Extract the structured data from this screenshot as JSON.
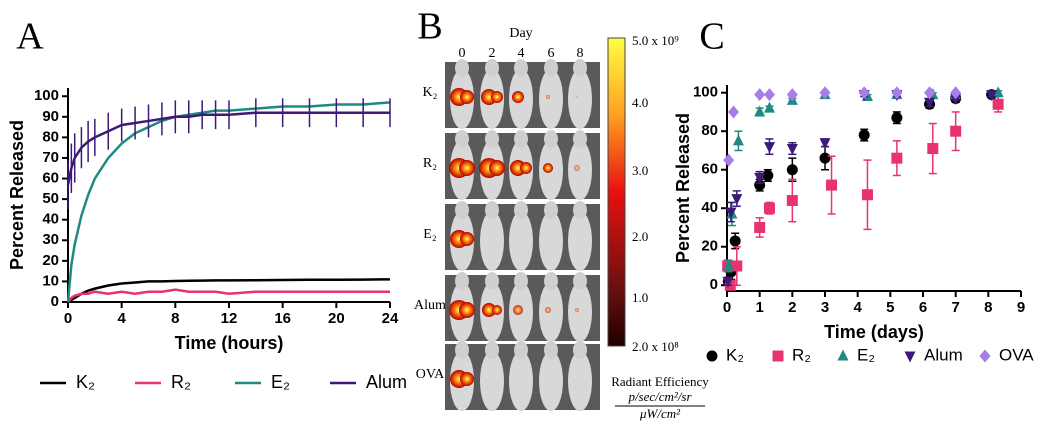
{
  "chart_data": [
    {
      "type": "line",
      "panel_label": "A",
      "y_label": "Percent Released",
      "x_label": "Time (hours)",
      "x": [
        0,
        0.25,
        0.5,
        1,
        1.5,
        2,
        3,
        4,
        5,
        6,
        7,
        8,
        9,
        10,
        11,
        12,
        14,
        16,
        18,
        20,
        22,
        24
      ],
      "xlim": [
        0,
        24
      ],
      "xticks": [
        0,
        4,
        8,
        12,
        16,
        20,
        24
      ],
      "ylim": [
        0,
        104
      ],
      "yticks": [
        0,
        10,
        20,
        30,
        40,
        50,
        60,
        70,
        80,
        90,
        100
      ],
      "series": [
        {
          "name": "K₂",
          "color": "#000000",
          "values": [
            0,
            1,
            2,
            4,
            5.5,
            6.5,
            8,
            9,
            9.5,
            10,
            10,
            10.2,
            10.3,
            10.4,
            10.5,
            10.5,
            10.6,
            10.7,
            10.8,
            10.8,
            10.9,
            11
          ]
        },
        {
          "name": "R₂",
          "color": "#e8336f",
          "values": [
            0,
            2,
            3,
            4,
            4,
            5,
            4,
            5,
            4,
            5,
            5,
            6,
            5,
            5,
            5,
            4,
            5,
            5,
            5,
            5,
            5,
            5
          ]
        },
        {
          "name": "E₂",
          "color": "#1f8a82",
          "values": [
            0,
            18,
            28,
            42,
            52,
            60,
            70,
            77,
            82,
            85,
            88,
            90,
            91,
            92,
            93,
            93,
            94,
            95,
            95,
            96,
            96,
            97
          ]
        },
        {
          "name": "Alum",
          "color": "#3d1a78",
          "values": [
            57,
            65,
            70,
            75,
            78,
            80,
            83,
            86,
            87,
            88,
            89,
            90,
            90,
            91,
            91,
            91,
            92,
            92,
            92,
            92,
            92,
            92
          ],
          "errors": [
            12,
            12,
            12,
            10,
            10,
            9,
            9,
            8,
            8,
            8,
            8,
            8,
            8,
            7,
            7,
            7,
            7,
            7,
            7,
            7,
            7,
            7
          ]
        }
      ]
    },
    {
      "type": "scatter",
      "panel_label": "C",
      "y_label": "Percent Released",
      "x_label": "Time (days)",
      "xlim": [
        0,
        9
      ],
      "xticks": [
        0,
        1,
        2,
        3,
        4,
        5,
        6,
        7,
        8,
        9
      ],
      "ylim": [
        -3,
        104
      ],
      "yticks": [
        0,
        20,
        40,
        60,
        80,
        100
      ],
      "series": [
        {
          "name": "K₂",
          "color": "#000000",
          "marker": "circle",
          "x": [
            0.04,
            0.13,
            0.25,
            1,
            1.25,
            2,
            3,
            4.2,
            5.2,
            6.2,
            7,
            8.1
          ],
          "values": [
            2,
            7,
            23,
            52,
            57,
            60,
            66,
            78,
            87,
            94,
            97,
            99
          ],
          "errors": [
            2,
            4,
            4,
            3,
            3,
            6,
            6,
            3,
            3,
            2,
            2,
            1
          ]
        },
        {
          "name": "R₂",
          "color": "#e8336f",
          "marker": "square",
          "x": [
            0.02,
            0.1,
            0.3,
            1,
            1.3,
            2,
            3.2,
            4.3,
            5.2,
            6.3,
            7,
            8.3
          ],
          "values": [
            10,
            0,
            10,
            30,
            40,
            44,
            52,
            47,
            66,
            71,
            80,
            94
          ],
          "errors": [
            3,
            2,
            10,
            5,
            3,
            11,
            15,
            18,
            9,
            13,
            10,
            4
          ]
        },
        {
          "name": "E₂",
          "color": "#1f8a82",
          "marker": "triangle-up",
          "x": [
            0.05,
            0.15,
            0.35,
            1,
            1.3,
            2,
            3,
            4.3,
            5.2,
            6.3,
            7,
            8.3
          ],
          "values": [
            10,
            37,
            75,
            90,
            92,
            96,
            99,
            98,
            99,
            99,
            99,
            100
          ],
          "errors": [
            3,
            6,
            5,
            2,
            1,
            1,
            1,
            1,
            1,
            1,
            1,
            1
          ]
        },
        {
          "name": "Alum",
          "color": "#3d1a78",
          "marker": "triangle-down",
          "x": [
            0.03,
            0.12,
            0.3,
            1,
            1.3,
            2,
            3,
            4.2,
            5.2,
            6.2,
            7,
            8.1
          ],
          "values": [
            2,
            38,
            45,
            56,
            72,
            71,
            74,
            99,
            99,
            95,
            97,
            99
          ],
          "errors": [
            2,
            5,
            4,
            3,
            4,
            3,
            2,
            1,
            1,
            2,
            1,
            1
          ]
        },
        {
          "name": "OVA",
          "color": "#a77ee8",
          "marker": "diamond",
          "x": [
            0.05,
            0.2,
            1,
            1.3,
            2,
            3,
            4.2,
            5.2,
            6.2,
            7
          ],
          "values": [
            65,
            90,
            99,
            99,
            99,
            100,
            100,
            100,
            100,
            100
          ]
        }
      ]
    }
  ],
  "imaging": {
    "panel_label": "B",
    "day_title": "Day",
    "days": [
      "0",
      "2",
      "4",
      "6",
      "8"
    ],
    "groups": [
      "K₂",
      "R₂",
      "E₂",
      "Alum",
      "OVA"
    ],
    "colorbar": {
      "labels": [
        "5.0 x 10⁹",
        "4.0",
        "3.0",
        "2.0",
        "1.0",
        "2.0 x 10⁸"
      ],
      "title": "Radiant Efficiency",
      "unit_numerator": "p/sec/cm²/sr",
      "unit_denominator": "μW/cm²"
    }
  }
}
